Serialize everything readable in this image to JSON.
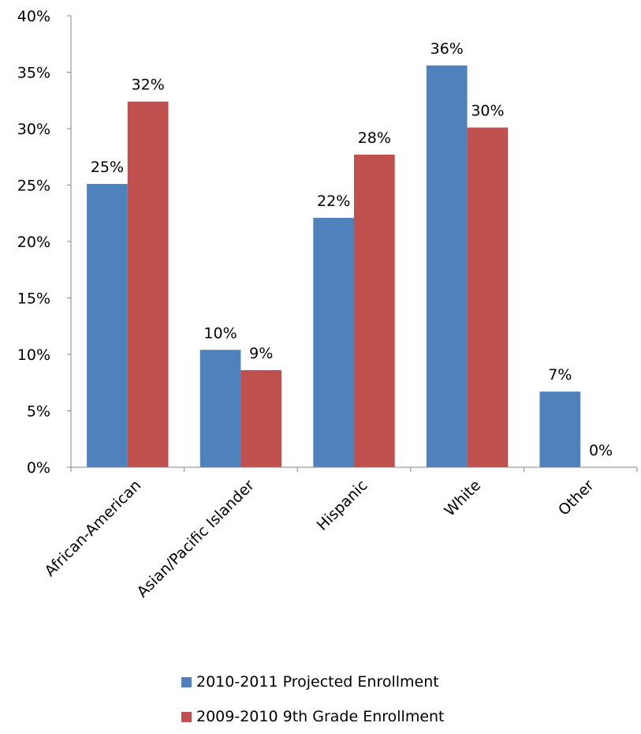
{
  "chart_data": {
    "type": "bar",
    "title": "",
    "xlabel": "",
    "ylabel": "",
    "ylim": [
      0,
      40
    ],
    "yticks": [
      0,
      5,
      10,
      15,
      20,
      25,
      30,
      35,
      40
    ],
    "ytick_suffix": "%",
    "grid": false,
    "legend_position": "bottom",
    "categories": [
      "African-American",
      "Asian/Pacific Islander",
      "Hispanic",
      "White",
      "Other"
    ],
    "series": [
      {
        "name": "2010-2011 Projected Enrollment",
        "color": "#4f81bd",
        "values": [
          25.1,
          10.4,
          22.1,
          35.6,
          6.7
        ],
        "labels": [
          "25%",
          "10%",
          "22%",
          "36%",
          "7%"
        ]
      },
      {
        "name": "2009-2010 9th Grade Enrollment",
        "color": "#c0504d",
        "values": [
          32.4,
          8.6,
          27.7,
          30.1,
          0
        ],
        "labels": [
          "32%",
          "9%",
          "28%",
          "30%",
          "0%"
        ]
      }
    ]
  }
}
